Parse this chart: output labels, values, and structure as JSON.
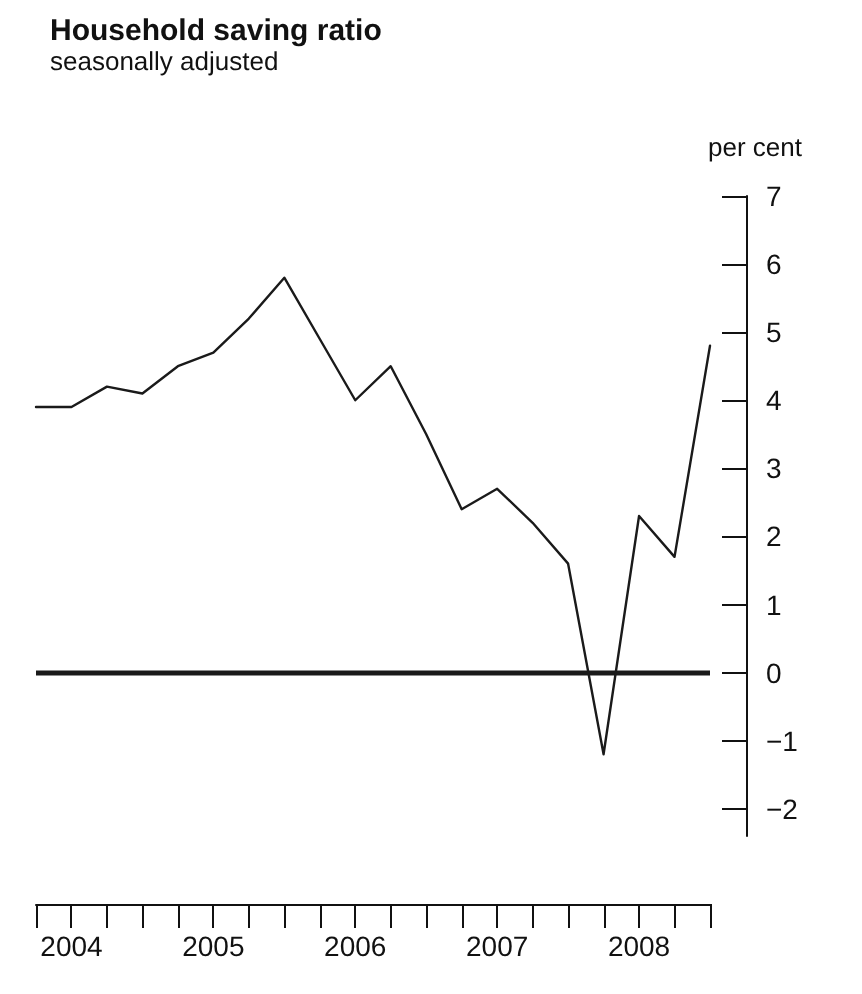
{
  "chart_data": {
    "type": "line",
    "title": "Household saving ratio",
    "subtitle": "seasonally adjusted",
    "ylabel": "per cent",
    "categories": [
      null,
      "2004",
      null,
      null,
      null,
      "2005",
      null,
      null,
      null,
      "2006",
      null,
      null,
      null,
      "2007",
      null,
      null,
      null,
      "2008",
      null,
      null
    ],
    "series": [
      {
        "color": "#1a1a1a",
        "values": [
          3.9,
          3.9,
          4.2,
          4.1,
          4.5,
          4.7,
          5.2,
          5.8,
          4.9,
          4.0,
          4.5,
          3.5,
          2.4,
          2.7,
          2.2,
          1.6,
          -1.2,
          2.3,
          1.7,
          4.8
        ]
      }
    ],
    "ylim": [
      -2.4,
      7
    ],
    "yticks": [
      {
        "value": -2,
        "label": "−2"
      },
      {
        "value": -1,
        "label": "−1"
      },
      0,
      1,
      2,
      3,
      4,
      5,
      6,
      7
    ],
    "ref_lines": [
      {
        "axis": "y",
        "value": 0,
        "color": "#1a1a1a"
      }
    ],
    "grid": false,
    "marker": "none",
    "line_style": "solid"
  }
}
